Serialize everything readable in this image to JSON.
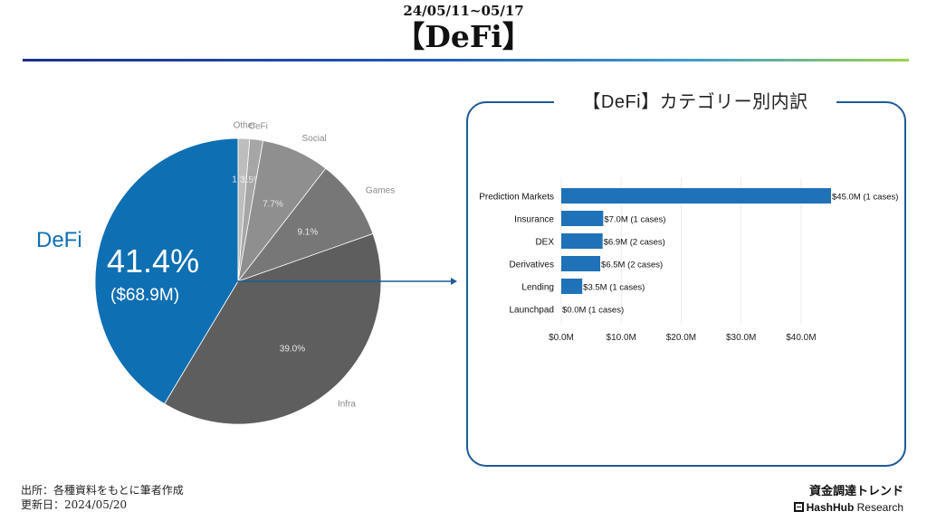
{
  "header": {
    "date_range": "24/05/11~05/17",
    "title": "【DeFi】"
  },
  "colors": {
    "accent": "#0f6fb3",
    "bar": "#1f72b8",
    "rule_start": "#1c2f8c",
    "rule_end": "#9ed14d",
    "panel_border": "#1c5a9a"
  },
  "highlight": {
    "label": "DeFi",
    "percent": "41.4%",
    "amount": "($68.9M)"
  },
  "panel": {
    "title": "【DeFi】カテゴリー別内訳"
  },
  "footer": {
    "source": "出所：各種資料をもとに筆者作成",
    "updated": "更新日：2024/05/20",
    "brand_title": "資金調達トレンド",
    "brand_name_bold": "HashHub",
    "brand_name_rest": " Research"
  },
  "chart_data": [
    {
      "type": "pie",
      "title": "",
      "slices": [
        {
          "label": "DeFi",
          "value": 41.4,
          "pct_label": "",
          "color": "#0f6fb3"
        },
        {
          "label": "Infra",
          "value": 39.0,
          "pct_label": "39.0%",
          "color": "#5e5e5e"
        },
        {
          "label": "Games",
          "value": 9.1,
          "pct_label": "9.1%",
          "color": "#777777"
        },
        {
          "label": "Social",
          "value": 7.7,
          "pct_label": "7.7%",
          "color": "#8f8f8f"
        },
        {
          "label": "CeFi",
          "value": 1.5,
          "pct_label": "1.5%",
          "color": "#a6a6a6"
        },
        {
          "label": "Other",
          "value": 1.3,
          "pct_label": "1.3%",
          "color": "#bdbdbd"
        }
      ]
    },
    {
      "type": "bar",
      "orientation": "horizontal",
      "title": "【DeFi】カテゴリー別内訳",
      "categories": [
        "Prediction Markets",
        "Insurance",
        "DEX",
        "Derivatives",
        "Lending",
        "Launchpad"
      ],
      "values": [
        45.0,
        7.0,
        6.9,
        6.5,
        3.5,
        0.0
      ],
      "value_labels": [
        "$45.0M (1 cases)",
        "$7.0M (1 cases)",
        "$6.9M (2 cases)",
        "$6.5M (2 cases)",
        "$3.5M (1 cases)",
        "$0.0M (1 cases)"
      ],
      "xlim": [
        0,
        45
      ],
      "xticks": [
        0,
        10,
        20,
        30,
        40
      ],
      "xtick_labels": [
        "$0.0M",
        "$10.0M",
        "$20.0M",
        "$30.0M",
        "$40.0M"
      ],
      "grid": true
    }
  ]
}
